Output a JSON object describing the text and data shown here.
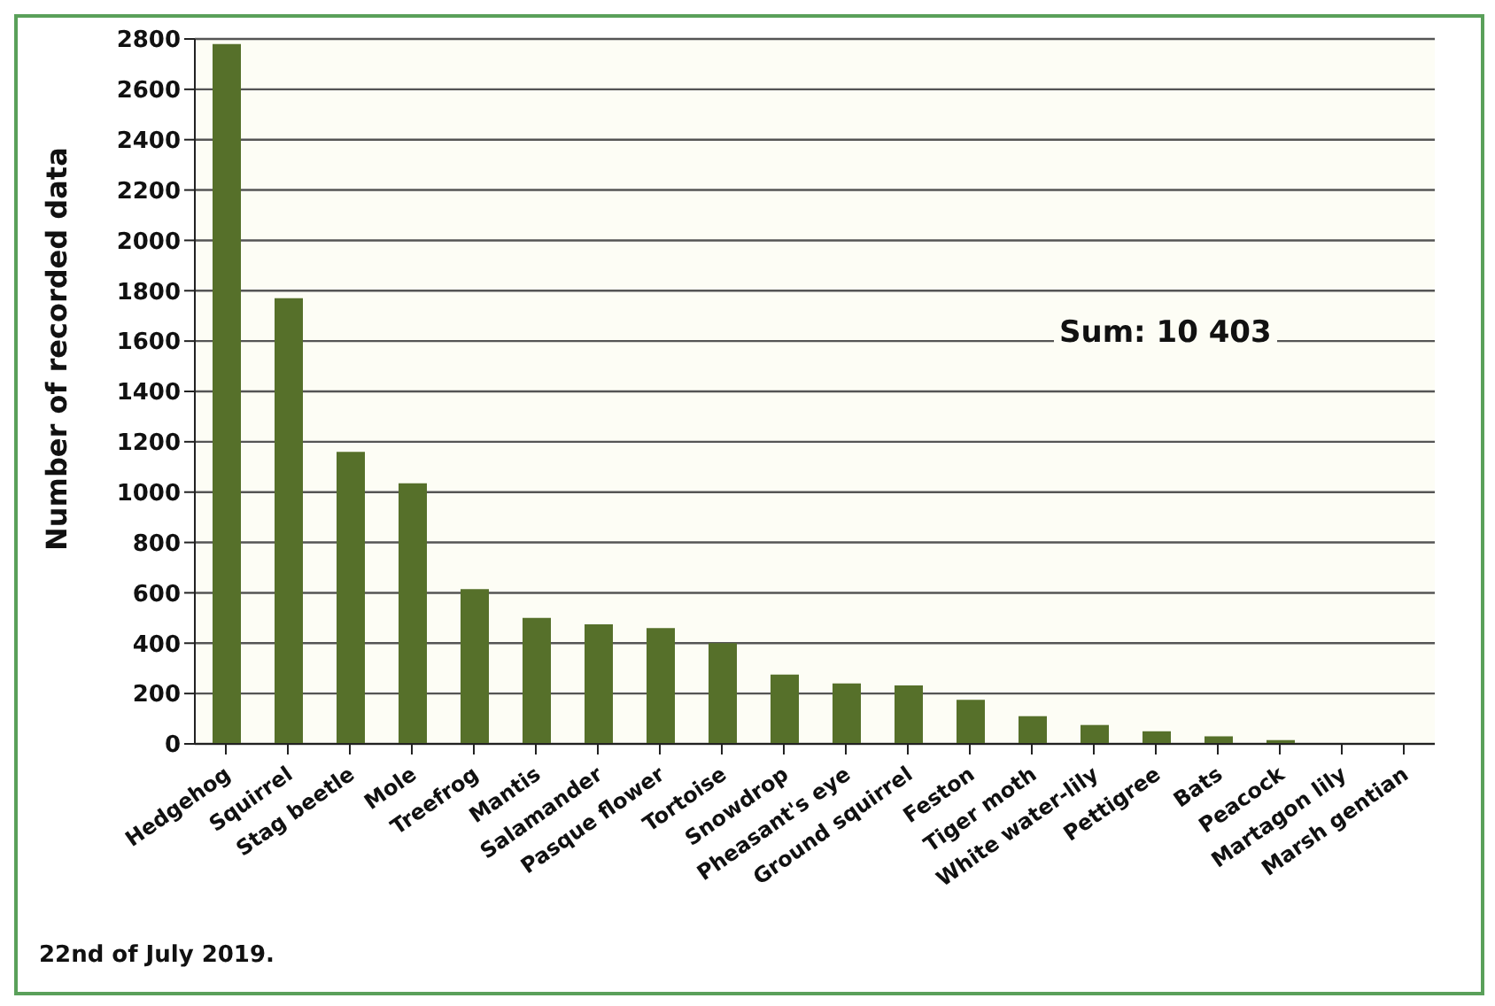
{
  "chart_data": {
    "type": "bar",
    "ylabel": "Number of recorded data",
    "categories": [
      "Hedgehog",
      "Squirrel",
      "Stag beetle",
      "Mole",
      "Treefrog",
      "Mantis",
      "Salamander",
      "Pasque flower",
      "Tortoise",
      "Snowdrop",
      "Pheasant's eye",
      "Ground squirrel",
      "Feston",
      "Tiger moth",
      "White water-lily",
      "Pettigree",
      "Bats",
      "Peacock",
      "Martagon lily",
      "Marsh gentian"
    ],
    "values": [
      2780,
      1770,
      1160,
      1035,
      615,
      500,
      475,
      460,
      400,
      275,
      240,
      232,
      175,
      110,
      75,
      50,
      30,
      15,
      0,
      0
    ],
    "color": "#56702a",
    "ylim": [
      0,
      2800
    ],
    "yticks": [
      0,
      200,
      400,
      600,
      800,
      1000,
      1200,
      1400,
      1600,
      1800,
      2000,
      2200,
      2400,
      2600,
      2800
    ],
    "grid": "y",
    "annotations": [
      "Sum: 10 403",
      "22nd of July  2019."
    ]
  }
}
